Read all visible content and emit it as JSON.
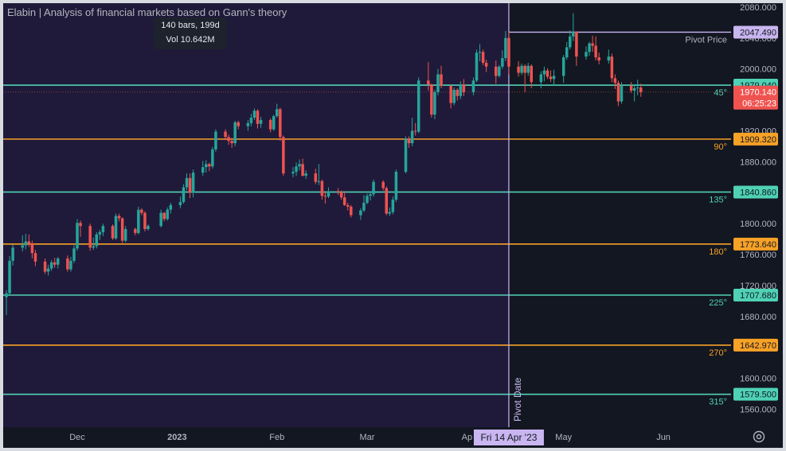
{
  "header": {
    "title": "Elabin | Analysis of financial markets based on Gann's theory"
  },
  "tooltip": {
    "bars": "140 bars, 199d",
    "volume": "Vol 10.642M"
  },
  "icons": {
    "settings": "gear-icon"
  },
  "colors": {
    "background": "#131722",
    "highlight_band": "#201a3a",
    "up": "#26a69a",
    "down": "#ef5350",
    "teal_line": "#4fd1b5",
    "orange_line": "#f7a126",
    "pivot_line": "#c9b6f0",
    "axis_text": "#b2b5be"
  },
  "chart_data": {
    "type": "candlestick",
    "title": "Elabin | Analysis of financial markets based on Gann's theory",
    "y_axis": {
      "ticks": [
        "2080.000",
        "2040.000",
        "2000.000",
        "1920.000",
        "1880.000",
        "1840.000",
        "1800.000",
        "1760.000",
        "1720.000",
        "1680.000",
        "1600.000",
        "1560.000"
      ],
      "range": [
        1537,
        2085
      ],
      "position": "right"
    },
    "x_axis": {
      "ticks": [
        "Dec",
        "2023",
        "Feb",
        "Mar",
        "Ap",
        "May",
        "Jun"
      ],
      "range": [
        "2022-11-08",
        "2023-06-22"
      ]
    },
    "pivot": {
      "date_label": "Fri 14 Apr '23",
      "vertical_label": "Pivot Date",
      "price_label": "Pivot Price",
      "price": 2047.49
    },
    "current_price": {
      "value": "1970.140",
      "countdown": "06:25:23"
    },
    "levels": [
      {
        "angle": "45°",
        "price": 1979.04,
        "label": "1979.040",
        "color": "teal"
      },
      {
        "angle": "90°",
        "price": 1909.32,
        "label": "1909.320",
        "color": "orange"
      },
      {
        "angle": "135°",
        "price": 1840.86,
        "label": "1840.860",
        "color": "teal"
      },
      {
        "angle": "180°",
        "price": 1773.64,
        "label": "1773.640",
        "color": "orange"
      },
      {
        "angle": "225°",
        "price": 1707.68,
        "label": "1707.680",
        "color": "teal"
      },
      {
        "angle": "270°",
        "price": 1642.97,
        "label": "1642.970",
        "color": "orange"
      },
      {
        "angle": "315°",
        "price": 1579.5,
        "label": "1579.500",
        "color": "teal"
      }
    ],
    "pivot_price_label": "2047.490",
    "highlight_range": [
      "2022-11-08",
      "2023-04-14"
    ],
    "candles": [
      {
        "d": "2022-11-09",
        "o": 1705,
        "h": 1714,
        "l": 1682,
        "c": 1710
      },
      {
        "d": "2022-11-10",
        "o": 1710,
        "h": 1758,
        "l": 1708,
        "c": 1752
      },
      {
        "d": "2022-11-11",
        "o": 1752,
        "h": 1773,
        "l": 1746,
        "c": 1769
      },
      {
        "d": "2022-11-14",
        "o": 1769,
        "h": 1785,
        "l": 1764,
        "c": 1772
      },
      {
        "d": "2022-11-15",
        "o": 1772,
        "h": 1787,
        "l": 1767,
        "c": 1777
      },
      {
        "d": "2022-11-16",
        "o": 1777,
        "h": 1786,
        "l": 1770,
        "c": 1774
      },
      {
        "d": "2022-11-17",
        "o": 1774,
        "h": 1778,
        "l": 1755,
        "c": 1762
      },
      {
        "d": "2022-11-18",
        "o": 1762,
        "h": 1766,
        "l": 1745,
        "c": 1751
      },
      {
        "d": "2022-11-21",
        "o": 1751,
        "h": 1755,
        "l": 1735,
        "c": 1738
      },
      {
        "d": "2022-11-22",
        "o": 1738,
        "h": 1747,
        "l": 1733,
        "c": 1742
      },
      {
        "d": "2022-11-23",
        "o": 1742,
        "h": 1753,
        "l": 1739,
        "c": 1750
      },
      {
        "d": "2022-11-24",
        "o": 1750,
        "h": 1756,
        "l": 1743,
        "c": 1747
      },
      {
        "d": "2022-11-25",
        "o": 1747,
        "h": 1757,
        "l": 1742,
        "c": 1755
      },
      {
        "d": "2022-11-28",
        "o": 1755,
        "h": 1759,
        "l": 1738,
        "c": 1741
      },
      {
        "d": "2022-11-29",
        "o": 1741,
        "h": 1757,
        "l": 1738,
        "c": 1752
      },
      {
        "d": "2022-11-30",
        "o": 1752,
        "h": 1772,
        "l": 1749,
        "c": 1768
      },
      {
        "d": "2022-12-01",
        "o": 1768,
        "h": 1806,
        "l": 1765,
        "c": 1801
      },
      {
        "d": "2022-12-02",
        "o": 1801,
        "h": 1804,
        "l": 1783,
        "c": 1797
      },
      {
        "d": "2022-12-05",
        "o": 1797,
        "h": 1800,
        "l": 1765,
        "c": 1769
      },
      {
        "d": "2022-12-06",
        "o": 1769,
        "h": 1782,
        "l": 1766,
        "c": 1771
      },
      {
        "d": "2022-12-07",
        "o": 1771,
        "h": 1789,
        "l": 1768,
        "c": 1786
      },
      {
        "d": "2022-12-08",
        "o": 1786,
        "h": 1792,
        "l": 1779,
        "c": 1789
      },
      {
        "d": "2022-12-09",
        "o": 1789,
        "h": 1800,
        "l": 1784,
        "c": 1797
      },
      {
        "d": "2022-12-12",
        "o": 1797,
        "h": 1799,
        "l": 1779,
        "c": 1781
      },
      {
        "d": "2022-12-13",
        "o": 1781,
        "h": 1813,
        "l": 1779,
        "c": 1810
      },
      {
        "d": "2022-12-14",
        "o": 1810,
        "h": 1813,
        "l": 1803,
        "c": 1807
      },
      {
        "d": "2022-12-15",
        "o": 1807,
        "h": 1808,
        "l": 1775,
        "c": 1778
      },
      {
        "d": "2022-12-16",
        "o": 1778,
        "h": 1797,
        "l": 1776,
        "c": 1793
      },
      {
        "d": "2022-12-19",
        "o": 1793,
        "h": 1795,
        "l": 1785,
        "c": 1788
      },
      {
        "d": "2022-12-20",
        "o": 1788,
        "h": 1822,
        "l": 1786,
        "c": 1818
      },
      {
        "d": "2022-12-21",
        "o": 1818,
        "h": 1820,
        "l": 1811,
        "c": 1814
      },
      {
        "d": "2022-12-22",
        "o": 1814,
        "h": 1816,
        "l": 1790,
        "c": 1793
      },
      {
        "d": "2022-12-23",
        "o": 1793,
        "h": 1799,
        "l": 1791,
        "c": 1797
      },
      {
        "d": "2022-12-27",
        "o": 1797,
        "h": 1818,
        "l": 1795,
        "c": 1814
      },
      {
        "d": "2022-12-28",
        "o": 1814,
        "h": 1815,
        "l": 1803,
        "c": 1806
      },
      {
        "d": "2022-12-29",
        "o": 1806,
        "h": 1821,
        "l": 1804,
        "c": 1818
      },
      {
        "d": "2022-12-30",
        "o": 1818,
        "h": 1827,
        "l": 1813,
        "c": 1824
      },
      {
        "d": "2023-01-02",
        "o": 1824,
        "h": 1835,
        "l": 1820,
        "c": 1828
      },
      {
        "d": "2023-01-03",
        "o": 1828,
        "h": 1851,
        "l": 1826,
        "c": 1847
      },
      {
        "d": "2023-01-04",
        "o": 1847,
        "h": 1865,
        "l": 1843,
        "c": 1859
      },
      {
        "d": "2023-01-05",
        "o": 1859,
        "h": 1865,
        "l": 1833,
        "c": 1840
      },
      {
        "d": "2023-01-06",
        "o": 1840,
        "h": 1870,
        "l": 1834,
        "c": 1866
      },
      {
        "d": "2023-01-09",
        "o": 1866,
        "h": 1881,
        "l": 1862,
        "c": 1873
      },
      {
        "d": "2023-01-10",
        "o": 1873,
        "h": 1882,
        "l": 1866,
        "c": 1877
      },
      {
        "d": "2023-01-11",
        "o": 1877,
        "h": 1879,
        "l": 1868,
        "c": 1874
      },
      {
        "d": "2023-01-12",
        "o": 1874,
        "h": 1899,
        "l": 1871,
        "c": 1896
      },
      {
        "d": "2023-01-13",
        "o": 1896,
        "h": 1922,
        "l": 1893,
        "c": 1919
      },
      {
        "d": "2023-01-16",
        "o": 1919,
        "h": 1922,
        "l": 1908,
        "c": 1912
      },
      {
        "d": "2023-01-17",
        "o": 1912,
        "h": 1915,
        "l": 1902,
        "c": 1907
      },
      {
        "d": "2023-01-18",
        "o": 1907,
        "h": 1911,
        "l": 1898,
        "c": 1904
      },
      {
        "d": "2023-01-19",
        "o": 1904,
        "h": 1933,
        "l": 1900,
        "c": 1931
      },
      {
        "d": "2023-01-20",
        "o": 1931,
        "h": 1933,
        "l": 1922,
        "c": 1926
      },
      {
        "d": "2023-01-23",
        "o": 1926,
        "h": 1934,
        "l": 1920,
        "c": 1930
      },
      {
        "d": "2023-01-24",
        "o": 1930,
        "h": 1942,
        "l": 1926,
        "c": 1937
      },
      {
        "d": "2023-01-25",
        "o": 1937,
        "h": 1949,
        "l": 1934,
        "c": 1946
      },
      {
        "d": "2023-01-26",
        "o": 1946,
        "h": 1948,
        "l": 1923,
        "c": 1929
      },
      {
        "d": "2023-01-27",
        "o": 1929,
        "h": 1938,
        "l": 1924,
        "c": 1934
      },
      {
        "d": "2023-01-30",
        "o": 1934,
        "h": 1936,
        "l": 1918,
        "c": 1922
      },
      {
        "d": "2023-01-31",
        "o": 1922,
        "h": 1941,
        "l": 1920,
        "c": 1939
      },
      {
        "d": "2023-02-01",
        "o": 1939,
        "h": 1955,
        "l": 1937,
        "c": 1948
      },
      {
        "d": "2023-02-02",
        "o": 1948,
        "h": 1950,
        "l": 1907,
        "c": 1912
      },
      {
        "d": "2023-02-03",
        "o": 1912,
        "h": 1914,
        "l": 1862,
        "c": 1865
      },
      {
        "d": "2023-02-06",
        "o": 1865,
        "h": 1873,
        "l": 1860,
        "c": 1867
      },
      {
        "d": "2023-02-07",
        "o": 1867,
        "h": 1879,
        "l": 1862,
        "c": 1874
      },
      {
        "d": "2023-02-08",
        "o": 1874,
        "h": 1883,
        "l": 1869,
        "c": 1877
      },
      {
        "d": "2023-02-09",
        "o": 1877,
        "h": 1884,
        "l": 1861,
        "c": 1862
      },
      {
        "d": "2023-02-10",
        "o": 1862,
        "h": 1869,
        "l": 1858,
        "c": 1865
      },
      {
        "d": "2023-02-13",
        "o": 1865,
        "h": 1871,
        "l": 1851,
        "c": 1854
      },
      {
        "d": "2023-02-14",
        "o": 1854,
        "h": 1877,
        "l": 1850,
        "c": 1855
      },
      {
        "d": "2023-02-15",
        "o": 1855,
        "h": 1857,
        "l": 1831,
        "c": 1836
      },
      {
        "d": "2023-02-16",
        "o": 1836,
        "h": 1842,
        "l": 1826,
        "c": 1835
      },
      {
        "d": "2023-02-17",
        "o": 1835,
        "h": 1847,
        "l": 1833,
        "c": 1842
      },
      {
        "d": "2023-02-20",
        "o": 1842,
        "h": 1846,
        "l": 1837,
        "c": 1841
      },
      {
        "d": "2023-02-21",
        "o": 1841,
        "h": 1843,
        "l": 1831,
        "c": 1834
      },
      {
        "d": "2023-02-22",
        "o": 1834,
        "h": 1842,
        "l": 1823,
        "c": 1824
      },
      {
        "d": "2023-02-23",
        "o": 1824,
        "h": 1827,
        "l": 1817,
        "c": 1822
      },
      {
        "d": "2023-02-24",
        "o": 1822,
        "h": 1824,
        "l": 1808,
        "c": 1811
      },
      {
        "d": "2023-02-27",
        "o": 1811,
        "h": 1820,
        "l": 1805,
        "c": 1817
      },
      {
        "d": "2023-02-28",
        "o": 1817,
        "h": 1837,
        "l": 1815,
        "c": 1827
      },
      {
        "d": "2023-03-01",
        "o": 1827,
        "h": 1839,
        "l": 1825,
        "c": 1836
      },
      {
        "d": "2023-03-02",
        "o": 1836,
        "h": 1842,
        "l": 1830,
        "c": 1838
      },
      {
        "d": "2023-03-03",
        "o": 1838,
        "h": 1857,
        "l": 1835,
        "c": 1854
      },
      {
        "d": "2023-03-06",
        "o": 1854,
        "h": 1856,
        "l": 1843,
        "c": 1846
      },
      {
        "d": "2023-03-07",
        "o": 1846,
        "h": 1848,
        "l": 1811,
        "c": 1813
      },
      {
        "d": "2023-03-08",
        "o": 1813,
        "h": 1821,
        "l": 1810,
        "c": 1815
      },
      {
        "d": "2023-03-09",
        "o": 1815,
        "h": 1835,
        "l": 1812,
        "c": 1831
      },
      {
        "d": "2023-03-10",
        "o": 1831,
        "h": 1870,
        "l": 1828,
        "c": 1867
      },
      {
        "d": "2023-03-13",
        "o": 1867,
        "h": 1913,
        "l": 1865,
        "c": 1910
      },
      {
        "d": "2023-03-14",
        "o": 1910,
        "h": 1913,
        "l": 1898,
        "c": 1904
      },
      {
        "d": "2023-03-15",
        "o": 1904,
        "h": 1937,
        "l": 1900,
        "c": 1920
      },
      {
        "d": "2023-03-16",
        "o": 1920,
        "h": 1930,
        "l": 1914,
        "c": 1919
      },
      {
        "d": "2023-03-17",
        "o": 1919,
        "h": 1989,
        "l": 1917,
        "c": 1985
      },
      {
        "d": "2023-03-20",
        "o": 1985,
        "h": 2009,
        "l": 1972,
        "c": 1980
      },
      {
        "d": "2023-03-21",
        "o": 1980,
        "h": 1981,
        "l": 1937,
        "c": 1941
      },
      {
        "d": "2023-03-22",
        "o": 1941,
        "h": 1973,
        "l": 1935,
        "c": 1970
      },
      {
        "d": "2023-03-23",
        "o": 1970,
        "h": 2000,
        "l": 1966,
        "c": 1993
      },
      {
        "d": "2023-03-24",
        "o": 1993,
        "h": 2004,
        "l": 1975,
        "c": 1978
      },
      {
        "d": "2023-03-27",
        "o": 1978,
        "h": 1979,
        "l": 1949,
        "c": 1956
      },
      {
        "d": "2023-03-28",
        "o": 1956,
        "h": 1976,
        "l": 1953,
        "c": 1973
      },
      {
        "d": "2023-03-29",
        "o": 1973,
        "h": 1975,
        "l": 1959,
        "c": 1965
      },
      {
        "d": "2023-03-30",
        "o": 1965,
        "h": 1984,
        "l": 1961,
        "c": 1980
      },
      {
        "d": "2023-03-31",
        "o": 1980,
        "h": 1987,
        "l": 1965,
        "c": 1970
      },
      {
        "d": "2023-04-03",
        "o": 1970,
        "h": 1989,
        "l": 1966,
        "c": 1985
      },
      {
        "d": "2023-04-04",
        "o": 1985,
        "h": 2025,
        "l": 1983,
        "c": 2021
      },
      {
        "d": "2023-04-05",
        "o": 2021,
        "h": 2032,
        "l": 2010,
        "c": 2022
      },
      {
        "d": "2023-04-06",
        "o": 2022,
        "h": 2025,
        "l": 2005,
        "c": 2008
      },
      {
        "d": "2023-04-07",
        "o": 2008,
        "h": 2012,
        "l": 1996,
        "c": 2003
      },
      {
        "d": "2023-04-10",
        "o": 2003,
        "h": 2011,
        "l": 1981,
        "c": 1991
      },
      {
        "d": "2023-04-11",
        "o": 1991,
        "h": 2005,
        "l": 1989,
        "c": 2003
      },
      {
        "d": "2023-04-12",
        "o": 2003,
        "h": 2024,
        "l": 2000,
        "c": 2014
      },
      {
        "d": "2023-04-13",
        "o": 2014,
        "h": 2049,
        "l": 2010,
        "c": 2040
      },
      {
        "d": "2023-04-14",
        "o": 2040,
        "h": 2048,
        "l": 1993,
        "c": 2003
      },
      {
        "d": "2023-04-17",
        "o": 2003,
        "h": 2010,
        "l": 1990,
        "c": 1995
      },
      {
        "d": "2023-04-18",
        "o": 1995,
        "h": 2007,
        "l": 1992,
        "c": 2004
      },
      {
        "d": "2023-04-19",
        "o": 2004,
        "h": 2006,
        "l": 1970,
        "c": 1995
      },
      {
        "d": "2023-04-20",
        "o": 1995,
        "h": 2008,
        "l": 1991,
        "c": 2004
      },
      {
        "d": "2023-04-21",
        "o": 2004,
        "h": 2006,
        "l": 1975,
        "c": 1983
      },
      {
        "d": "2023-04-24",
        "o": 1983,
        "h": 1997,
        "l": 1975,
        "c": 1993
      },
      {
        "d": "2023-04-25",
        "o": 1993,
        "h": 2003,
        "l": 1984,
        "c": 1998
      },
      {
        "d": "2023-04-26",
        "o": 1998,
        "h": 2001,
        "l": 1987,
        "c": 1990
      },
      {
        "d": "2023-04-27",
        "o": 1990,
        "h": 1998,
        "l": 1983,
        "c": 1987
      },
      {
        "d": "2023-04-28",
        "o": 1987,
        "h": 1999,
        "l": 1978,
        "c": 1991
      },
      {
        "d": "2023-05-01",
        "o": 1991,
        "h": 2018,
        "l": 1982,
        "c": 2015
      },
      {
        "d": "2023-05-02",
        "o": 2015,
        "h": 2035,
        "l": 2012,
        "c": 2028
      },
      {
        "d": "2023-05-03",
        "o": 2028,
        "h": 2050,
        "l": 2025,
        "c": 2042
      },
      {
        "d": "2023-05-04",
        "o": 2042,
        "h": 2072,
        "l": 2036,
        "c": 2048
      },
      {
        "d": "2023-05-05",
        "o": 2048,
        "h": 2049,
        "l": 2004,
        "c": 2016
      },
      {
        "d": "2023-05-08",
        "o": 2016,
        "h": 2029,
        "l": 2012,
        "c": 2022
      },
      {
        "d": "2023-05-09",
        "o": 2022,
        "h": 2035,
        "l": 2017,
        "c": 2033
      },
      {
        "d": "2023-05-10",
        "o": 2033,
        "h": 2043,
        "l": 2022,
        "c": 2030
      },
      {
        "d": "2023-05-11",
        "o": 2030,
        "h": 2042,
        "l": 2011,
        "c": 2015
      },
      {
        "d": "2023-05-12",
        "o": 2015,
        "h": 2021,
        "l": 2006,
        "c": 2011
      },
      {
        "d": "2023-05-15",
        "o": 2011,
        "h": 2025,
        "l": 2007,
        "c": 2016
      },
      {
        "d": "2023-05-16",
        "o": 2016,
        "h": 2020,
        "l": 1983,
        "c": 1988
      },
      {
        "d": "2023-05-17",
        "o": 1988,
        "h": 1993,
        "l": 1974,
        "c": 1982
      },
      {
        "d": "2023-05-18",
        "o": 1982,
        "h": 1985,
        "l": 1952,
        "c": 1958
      },
      {
        "d": "2023-05-19",
        "o": 1958,
        "h": 1983,
        "l": 1955,
        "c": 1978
      },
      {
        "d": "2023-05-22",
        "o": 1978,
        "h": 1983,
        "l": 1969,
        "c": 1972
      },
      {
        "d": "2023-05-23",
        "o": 1972,
        "h": 1980,
        "l": 1958,
        "c": 1975
      },
      {
        "d": "2023-05-24",
        "o": 1975,
        "h": 1986,
        "l": 1966,
        "c": 1976
      },
      {
        "d": "2023-05-25",
        "o": 1976,
        "h": 1981,
        "l": 1964,
        "c": 1970
      }
    ]
  }
}
